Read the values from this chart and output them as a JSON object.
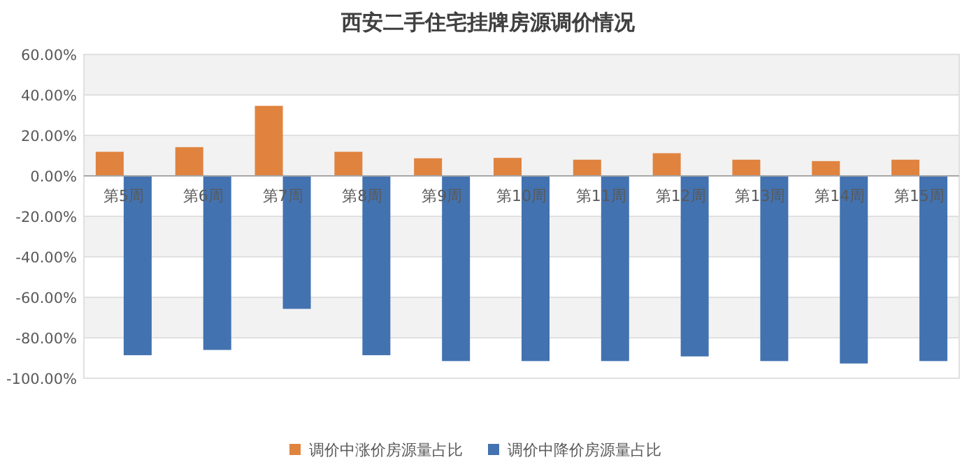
{
  "chart_data": {
    "type": "bar",
    "title": "西安二手住宅挂牌房源调价情况",
    "categories": [
      "第5周",
      "第6周",
      "第7周",
      "第8周",
      "第9周",
      "第10周",
      "第11周",
      "第12周",
      "第13周",
      "第14周",
      "第15周"
    ],
    "series": [
      {
        "name": "调价中涨价房源量占比",
        "color": "#e0833f",
        "values": [
          11.9,
          14.2,
          34.6,
          11.9,
          8.7,
          8.9,
          8.0,
          11.2,
          8.0,
          7.3,
          8.0
        ]
      },
      {
        "name": "调价中降价房源量占比",
        "color": "#4372b0",
        "values": [
          -88.6,
          -86.0,
          -65.7,
          -88.6,
          -91.5,
          -91.5,
          -91.5,
          -89.2,
          -91.5,
          -92.7,
          -91.5
        ]
      }
    ],
    "ylim": [
      -100,
      60
    ],
    "yticks": [
      {
        "value": -100,
        "label": "-100.00%"
      },
      {
        "value": -80,
        "label": "-80.00%"
      },
      {
        "value": -60,
        "label": "-60.00%"
      },
      {
        "value": -40,
        "label": "-40.00%"
      },
      {
        "value": -20,
        "label": "-20.00%"
      },
      {
        "value": 0,
        "label": "0.00%"
      },
      {
        "value": 20,
        "label": "20.00%"
      },
      {
        "value": 40,
        "label": "40.00%"
      },
      {
        "value": 60,
        "label": "60.00%"
      }
    ],
    "grid": "y",
    "legend": "bottom"
  }
}
